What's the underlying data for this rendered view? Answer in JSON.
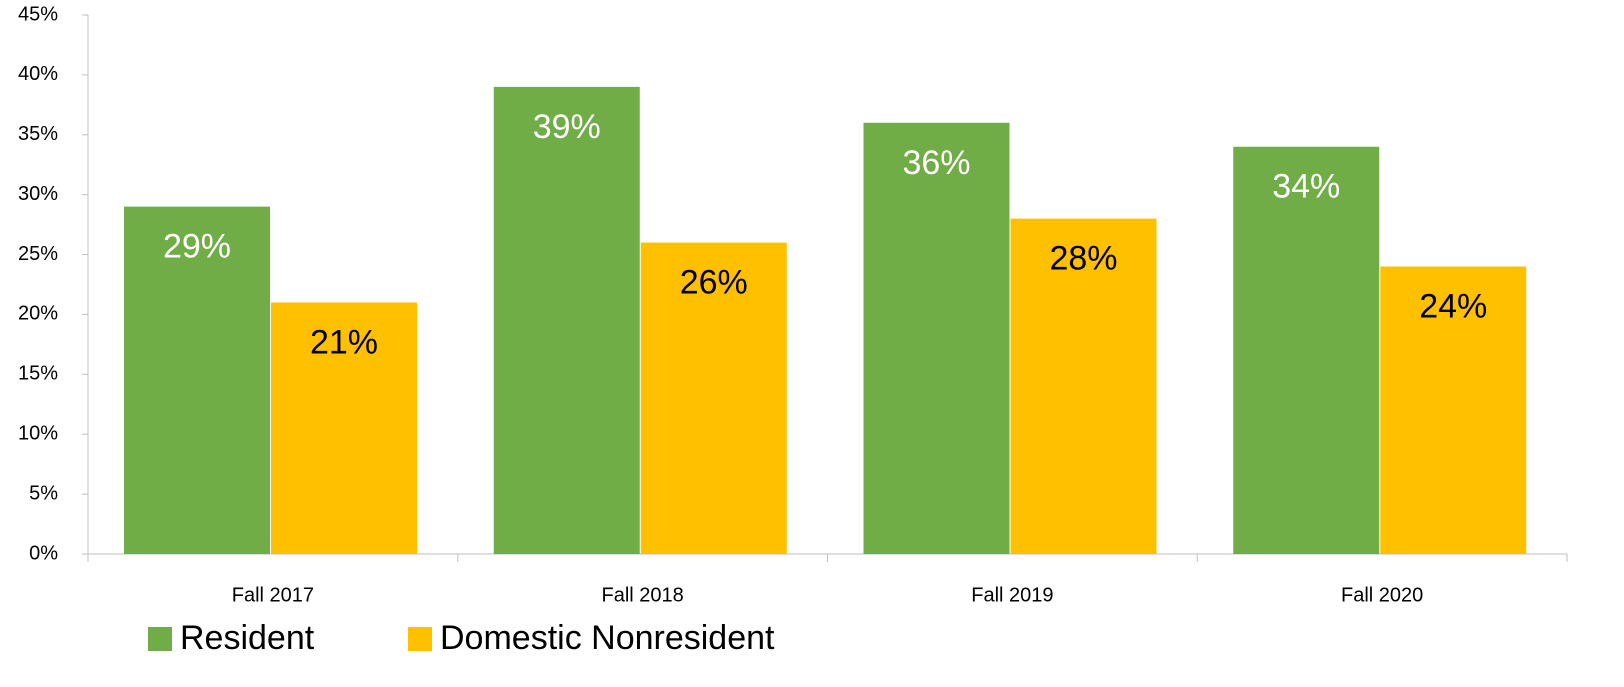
{
  "chart_data": {
    "type": "bar",
    "categories": [
      "Fall 2017",
      "Fall 2018",
      "Fall 2019",
      "Fall 2020"
    ],
    "series": [
      {
        "name": "Resident",
        "color": "#70ad47",
        "label_color": "#ffffff",
        "values": [
          29,
          39,
          36,
          34
        ],
        "value_labels": [
          "29%",
          "39%",
          "36%",
          "34%"
        ]
      },
      {
        "name": "Domestic Nonresident",
        "color": "#ffc000",
        "label_color": "#000000",
        "values": [
          21,
          26,
          28,
          24
        ],
        "value_labels": [
          "21%",
          "26%",
          "28%",
          "24%"
        ]
      }
    ],
    "ylim": [
      0,
      45
    ],
    "yticks": [
      {
        "value": 0,
        "label": "0%"
      },
      {
        "value": 5,
        "label": "5%"
      },
      {
        "value": 10,
        "label": "10%"
      },
      {
        "value": 15,
        "label": "15%"
      },
      {
        "value": 20,
        "label": "20%"
      },
      {
        "value": 25,
        "label": "25%"
      },
      {
        "value": 30,
        "label": "30%"
      },
      {
        "value": 35,
        "label": "35%"
      },
      {
        "value": 40,
        "label": "40%"
      },
      {
        "value": 45,
        "label": "45%"
      }
    ],
    "grid": false
  }
}
